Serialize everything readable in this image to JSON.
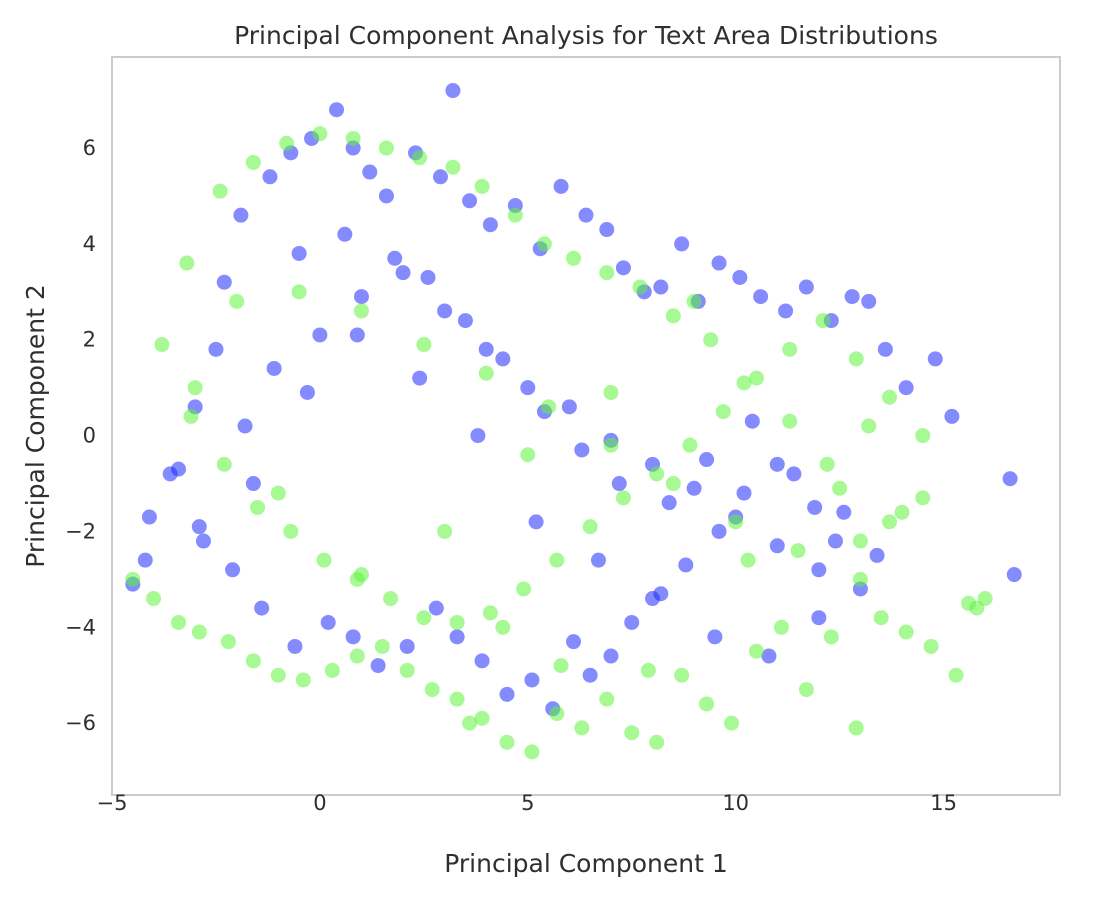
{
  "chart_data": {
    "type": "scatter",
    "title": "Principal Component Analysis for Text Area Distributions",
    "xlabel": "Principal Component 1",
    "ylabel": "Principal Component 2",
    "xlim": [
      -5.0,
      17.8
    ],
    "ylim": [
      -7.5,
      7.9
    ],
    "xticks": [
      -5,
      0,
      5,
      10,
      15
    ],
    "yticks": [
      6,
      4,
      2,
      0,
      -2,
      -4,
      -6
    ],
    "xtick_labels": [
      "−5",
      "0",
      "5",
      "10",
      "15"
    ],
    "ytick_labels": [
      "6",
      "4",
      "2",
      "0",
      "−2",
      "−4",
      "−6"
    ],
    "grid": false,
    "legend": "none",
    "marker": "circle",
    "alpha": 0.55,
    "series": [
      {
        "color": "#1f2bff",
        "x": [
          -4.5,
          -4.2,
          -4.1,
          -3.6,
          -3.0,
          -2.5,
          -2.3,
          -1.9,
          -1.2,
          -0.7,
          -0.2,
          0.4,
          0.8,
          1.2,
          1.6,
          2.3,
          2.9,
          3.2,
          3.6,
          4.1,
          4.7,
          5.3,
          5.8,
          6.4,
          6.9,
          7.3,
          7.8,
          8.2,
          8.7,
          9.1,
          9.6,
          10.1,
          10.6,
          11.2,
          11.7,
          12.3,
          12.8,
          13.2,
          13.6,
          14.1,
          14.8,
          15.2,
          16.6,
          16.7,
          12.4,
          11.9,
          11.0,
          10.2,
          9.6,
          8.8,
          8.2,
          7.5,
          7.0,
          6.5,
          6.1,
          5.6,
          5.1,
          4.5,
          3.9,
          3.3,
          2.8,
          2.1,
          1.4,
          0.8,
          0.2,
          -0.6,
          -1.4,
          -2.1,
          -2.9,
          -3.4,
          -1.8,
          -1.1,
          0.0,
          1.0,
          2.0,
          3.0,
          4.0,
          5.0,
          6.0,
          7.0,
          8.0,
          9.0,
          10.0,
          11.0,
          12.0,
          13.0,
          -0.5,
          0.6,
          1.8,
          2.6,
          3.5,
          4.4,
          5.4,
          6.3,
          7.2,
          8.4,
          9.3,
          10.4,
          11.4,
          12.6,
          13.4,
          -2.8,
          -1.6,
          -0.3,
          0.9,
          2.4,
          3.8,
          5.2,
          6.7,
          8.0,
          9.5,
          10.8,
          12.0
        ],
        "y": [
          -3.1,
          -2.6,
          -1.7,
          -0.8,
          0.6,
          1.8,
          3.2,
          4.6,
          5.4,
          5.9,
          6.2,
          6.8,
          6.0,
          5.5,
          5.0,
          5.9,
          5.4,
          7.2,
          4.9,
          4.4,
          4.8,
          3.9,
          5.2,
          4.6,
          4.3,
          3.5,
          3.0,
          3.1,
          4.0,
          2.8,
          3.6,
          3.3,
          2.9,
          2.6,
          3.1,
          2.4,
          2.9,
          2.8,
          1.8,
          1.0,
          1.6,
          0.4,
          -0.9,
          -2.9,
          -2.2,
          -1.5,
          -0.6,
          -1.2,
          -2.0,
          -2.7,
          -3.3,
          -3.9,
          -4.6,
          -5.0,
          -4.3,
          -5.7,
          -5.1,
          -5.4,
          -4.7,
          -4.2,
          -3.6,
          -4.4,
          -4.8,
          -4.2,
          -3.9,
          -4.4,
          -3.6,
          -2.8,
          -1.9,
          -0.7,
          0.2,
          1.4,
          2.1,
          2.9,
          3.4,
          2.6,
          1.8,
          1.0,
          0.6,
          -0.1,
          -0.6,
          -1.1,
          -1.7,
          -2.3,
          -2.8,
          -3.2,
          3.8,
          4.2,
          3.7,
          3.3,
          2.4,
          1.6,
          0.5,
          -0.3,
          -1.0,
          -1.4,
          -0.5,
          0.3,
          -0.8,
          -1.6,
          -2.5,
          -2.2,
          -1.0,
          0.9,
          2.1,
          1.2,
          0.0,
          -1.8,
          -2.6,
          -3.4,
          -4.2,
          -4.6,
          -3.8
        ]
      },
      {
        "color": "#5ef43c",
        "x": [
          -4.5,
          -4.0,
          -3.4,
          -2.9,
          -2.2,
          -1.6,
          -1.0,
          -0.4,
          0.3,
          0.9,
          1.5,
          2.1,
          2.7,
          3.3,
          3.9,
          4.5,
          5.1,
          5.7,
          6.3,
          6.9,
          7.5,
          8.1,
          8.7,
          9.3,
          9.9,
          10.5,
          11.1,
          11.7,
          12.3,
          12.9,
          13.5,
          14.1,
          14.7,
          15.3,
          15.8,
          16.0,
          15.6,
          14.5,
          13.7,
          13.0,
          12.2,
          11.3,
          10.2,
          9.4,
          8.5,
          7.7,
          6.9,
          6.1,
          5.4,
          4.7,
          3.9,
          3.2,
          2.4,
          1.6,
          0.8,
          0.0,
          -0.8,
          -1.6,
          -2.4,
          -3.2,
          -3.8,
          -3.1,
          -2.3,
          -1.5,
          -0.7,
          0.1,
          0.9,
          1.7,
          2.5,
          3.3,
          4.1,
          4.9,
          5.7,
          6.5,
          7.3,
          8.1,
          8.9,
          9.7,
          10.5,
          11.3,
          12.1,
          12.9,
          13.7,
          14.5,
          -2.0,
          -0.5,
          1.0,
          2.5,
          4.0,
          5.5,
          7.0,
          8.5,
          10.0,
          11.5,
          13.0,
          14.0,
          9.0,
          7.0,
          5.0,
          3.0,
          1.0,
          -1.0,
          -3.0,
          3.6,
          4.4,
          5.8,
          7.9,
          10.3,
          12.5,
          13.2
        ],
        "y": [
          -3.0,
          -3.4,
          -3.9,
          -4.1,
          -4.3,
          -4.7,
          -5.0,
          -5.1,
          -4.9,
          -4.6,
          -4.4,
          -4.9,
          -5.3,
          -5.5,
          -5.9,
          -6.4,
          -6.6,
          -5.8,
          -6.1,
          -5.5,
          -6.2,
          -6.4,
          -5.0,
          -5.6,
          -6.0,
          -4.5,
          -4.0,
          -5.3,
          -4.2,
          -6.1,
          -3.8,
          -4.1,
          -4.4,
          -5.0,
          -3.6,
          -3.4,
          -3.5,
          -1.3,
          -1.8,
          -2.2,
          -0.6,
          0.3,
          1.1,
          2.0,
          2.5,
          3.1,
          3.4,
          3.7,
          4.0,
          4.6,
          5.2,
          5.6,
          5.8,
          6.0,
          6.2,
          6.3,
          6.1,
          5.7,
          5.1,
          3.6,
          1.9,
          0.4,
          -0.6,
          -1.5,
          -2.0,
          -2.6,
          -3.0,
          -3.4,
          -3.8,
          -3.9,
          -3.7,
          -3.2,
          -2.6,
          -1.9,
          -1.3,
          -0.8,
          -0.2,
          0.5,
          1.2,
          1.8,
          2.4,
          1.6,
          0.8,
          0.0,
          2.8,
          3.0,
          2.6,
          1.9,
          1.3,
          0.6,
          -0.2,
          -1.0,
          -1.8,
          -2.4,
          -3.0,
          -1.6,
          2.8,
          0.9,
          -0.4,
          -2.0,
          -2.9,
          -1.2,
          1.0,
          -6.0,
          -4.0,
          -4.8,
          -4.9,
          -2.6,
          -1.1,
          0.2
        ]
      }
    ]
  }
}
